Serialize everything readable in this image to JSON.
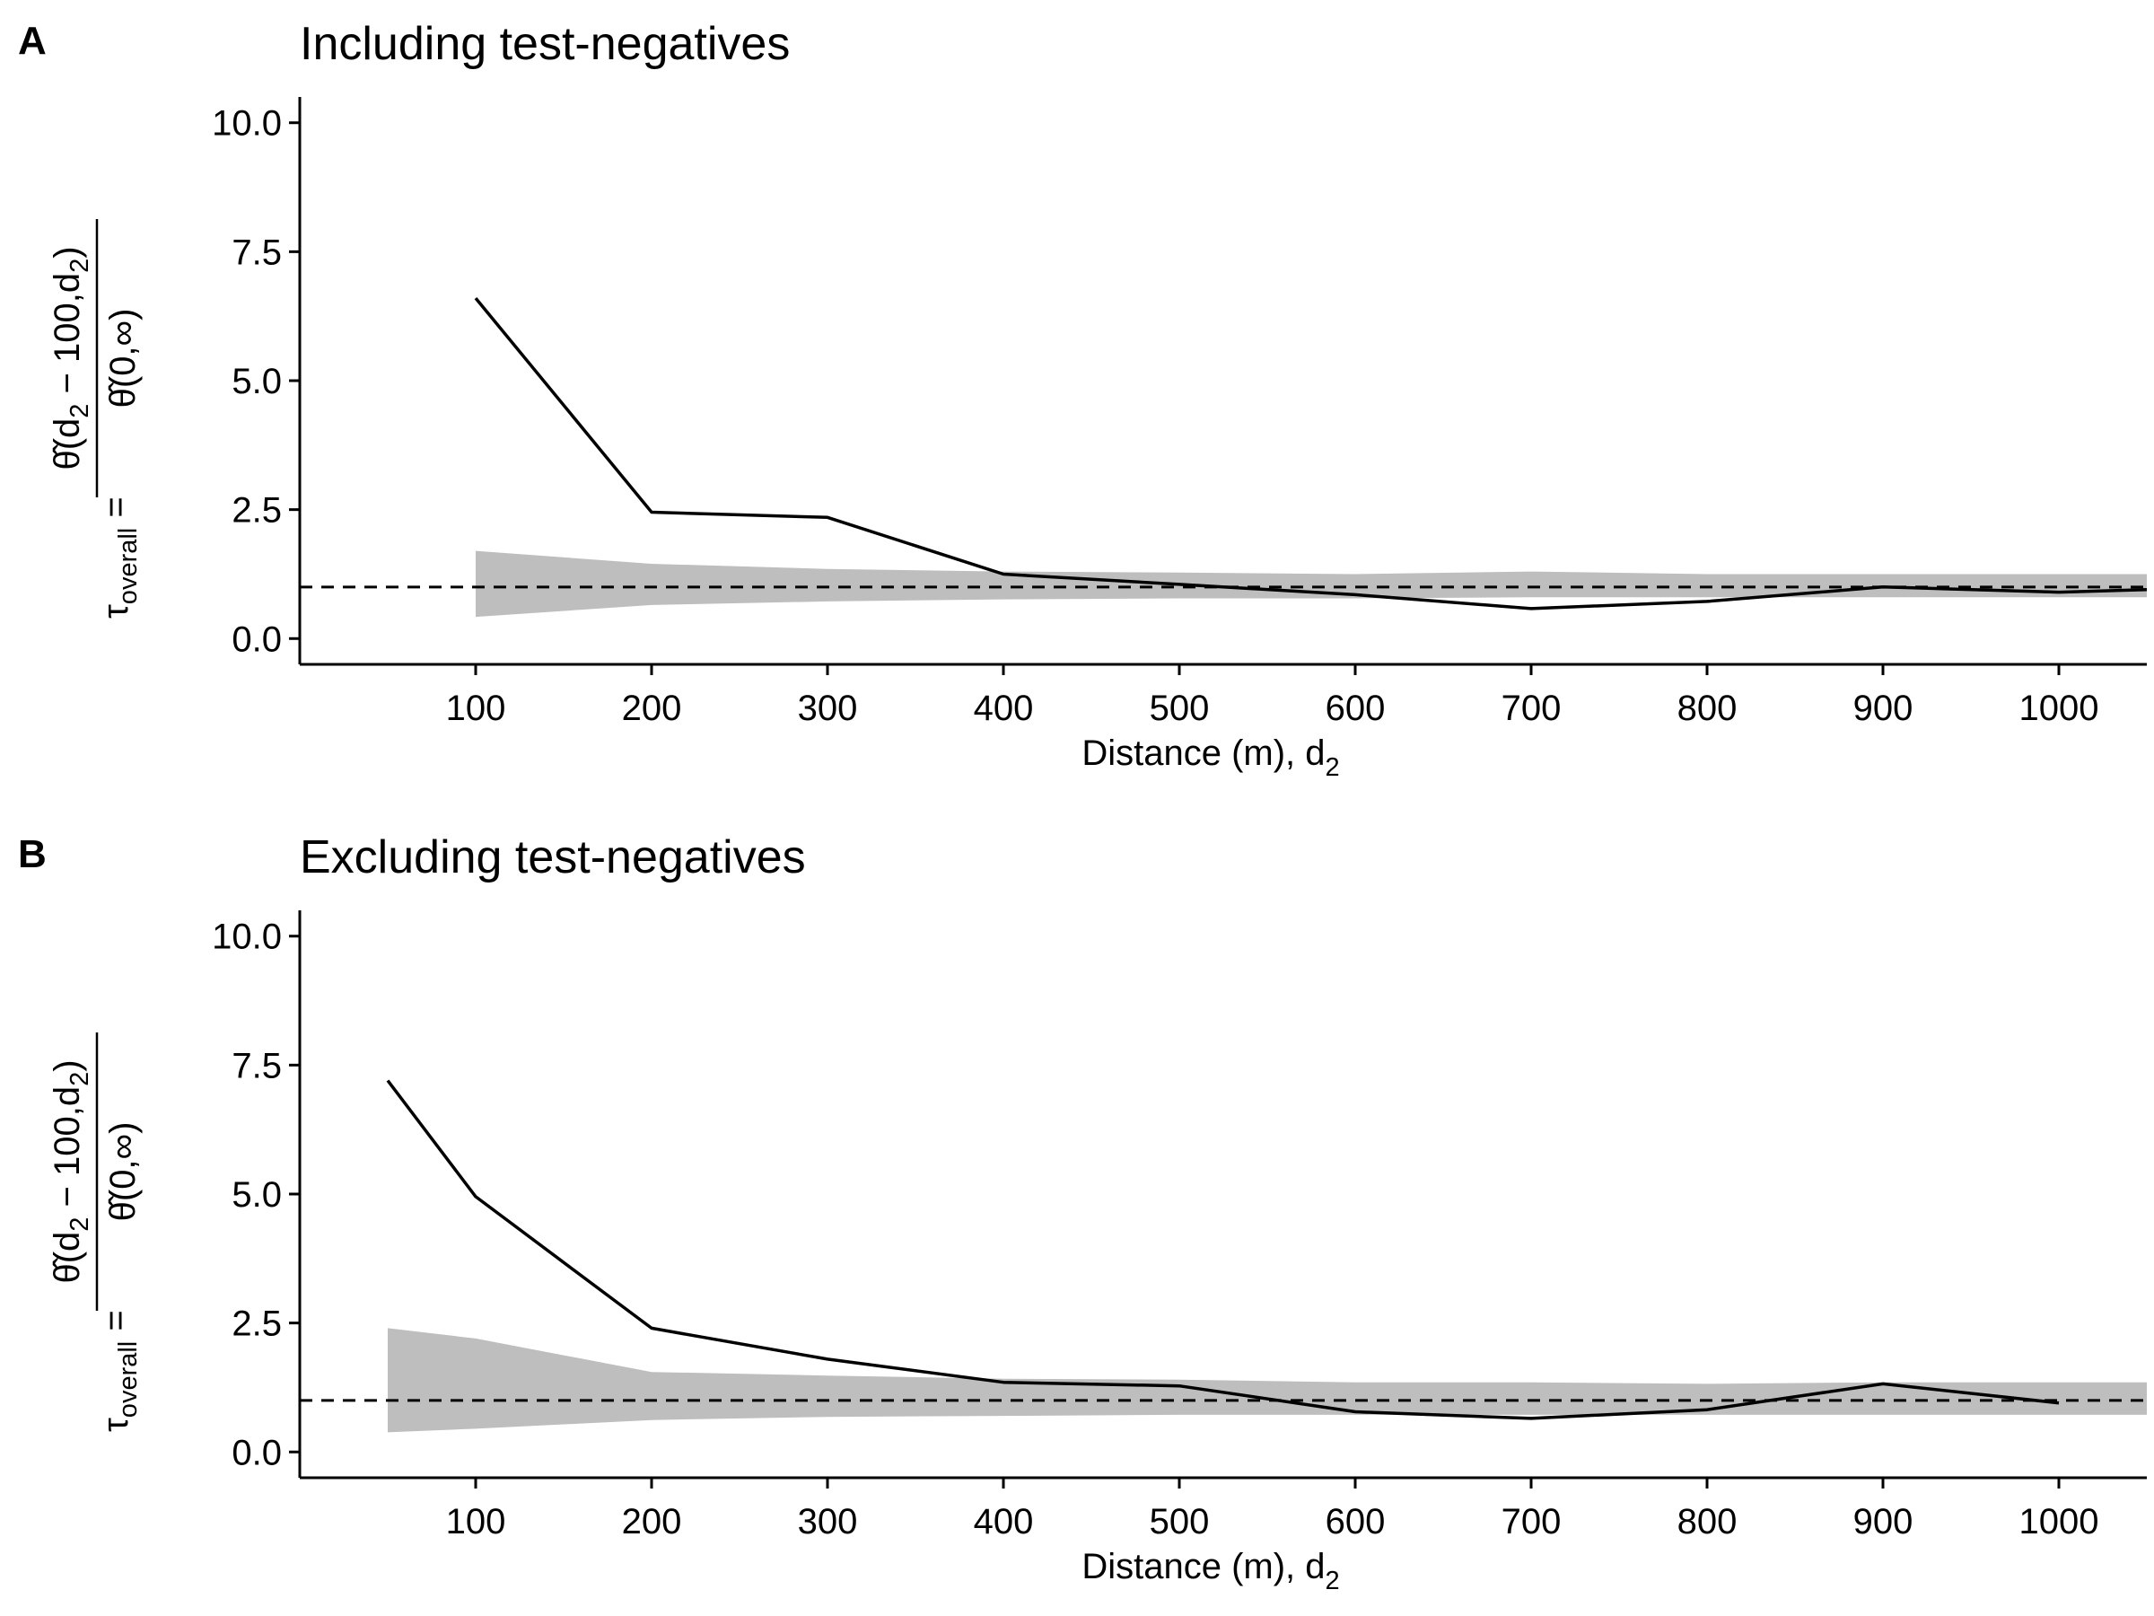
{
  "chart_data": [
    {
      "panel": "A",
      "type": "line",
      "title": "Including test-negatives",
      "xlabel": "Distance (m), d",
      "xlabel_sub": "2",
      "ylabel": "τ overall = θ̂(d2 − 100, d2) / θ̂(0, ∞)",
      "xlim": [
        0,
        1050
      ],
      "ylim": [
        -0.5,
        10.5
      ],
      "x_ticks": [
        100,
        200,
        300,
        400,
        500,
        600,
        700,
        800,
        900,
        1000
      ],
      "y_ticks": [
        0.0,
        2.5,
        5.0,
        7.5,
        10.0
      ],
      "reference_line": 1.0,
      "series": [
        {
          "x": [
            100,
            200,
            300,
            400,
            500,
            600,
            700,
            800,
            900,
            1000,
            1050
          ],
          "y": [
            6.6,
            2.45,
            2.35,
            1.25,
            1.05,
            0.85,
            0.58,
            0.72,
            1.0,
            0.9,
            0.95
          ]
        }
      ],
      "band": {
        "x": [
          100,
          200,
          300,
          400,
          500,
          600,
          700,
          800,
          900,
          1000,
          1050
        ],
        "lower": [
          0.42,
          0.65,
          0.72,
          0.76,
          0.78,
          0.78,
          0.8,
          0.8,
          0.8,
          0.8,
          0.8
        ],
        "upper": [
          1.7,
          1.45,
          1.35,
          1.3,
          1.28,
          1.25,
          1.3,
          1.25,
          1.25,
          1.25,
          1.25
        ]
      }
    },
    {
      "panel": "B",
      "type": "line",
      "title": "Excluding test-negatives",
      "xlabel": "Distance (m), d",
      "xlabel_sub": "2",
      "ylabel": "τ overall = θ̂(d2 − 100, d2) / θ̂(0, ∞)",
      "xlim": [
        0,
        1050
      ],
      "ylim": [
        -0.5,
        10.5
      ],
      "x_ticks": [
        100,
        200,
        300,
        400,
        500,
        600,
        700,
        800,
        900,
        1000
      ],
      "y_ticks": [
        0.0,
        2.5,
        5.0,
        7.5,
        10.0
      ],
      "reference_line": 1.0,
      "series": [
        {
          "x": [
            50,
            100,
            200,
            300,
            400,
            500,
            600,
            700,
            800,
            900,
            1000
          ],
          "y": [
            7.2,
            4.95,
            2.4,
            1.8,
            1.35,
            1.28,
            0.78,
            0.65,
            0.82,
            1.32,
            0.95
          ]
        }
      ],
      "band": {
        "x": [
          50,
          100,
          200,
          300,
          400,
          500,
          600,
          700,
          800,
          900,
          1000,
          1050
        ],
        "lower": [
          0.38,
          0.45,
          0.62,
          0.68,
          0.7,
          0.72,
          0.72,
          0.72,
          0.72,
          0.72,
          0.72,
          0.72
        ],
        "upper": [
          2.4,
          2.2,
          1.55,
          1.48,
          1.42,
          1.4,
          1.35,
          1.35,
          1.32,
          1.35,
          1.35,
          1.35
        ]
      }
    }
  ]
}
